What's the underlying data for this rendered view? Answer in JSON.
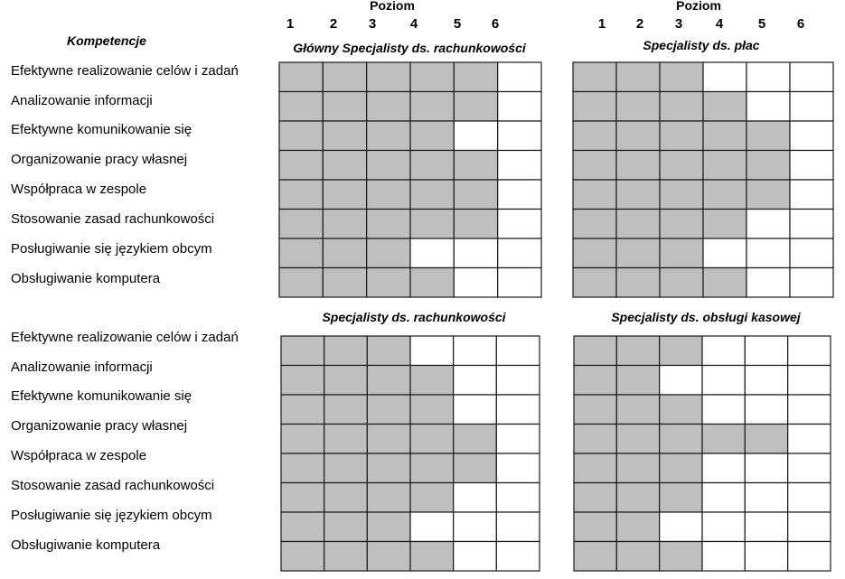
{
  "chart_data": {
    "type": "heatmap",
    "header": {
      "title": "Poziom",
      "levels": [
        "1",
        "2",
        "3",
        "4",
        "5",
        "6"
      ]
    },
    "competencies_label": "Kompetencje",
    "competencies": [
      "Efektywne realizowanie celów i zadań",
      "Analizowanie informacji",
      "Efektywne komunikowanie  się",
      "Organizowanie pracy własnej",
      "Współpraca w zespole",
      "Stosowanie zasad rachunkowości",
      "Posługiwanie się językiem obcym",
      "Obsługiwanie komputera"
    ],
    "fill_color": "#bfbfbf",
    "empty_color": "#ffffff",
    "panels": [
      {
        "title": "Główny Specjalisty ds. rachunkowości",
        "levels_filled": [
          5,
          5,
          4,
          5,
          5,
          5,
          3,
          4
        ]
      },
      {
        "title": "Specjalisty ds. płac",
        "levels_filled": [
          3,
          4,
          5,
          5,
          5,
          4,
          3,
          4
        ]
      },
      {
        "title": "Specjalisty  ds. rachunkowości",
        "levels_filled": [
          3,
          4,
          4,
          5,
          5,
          4,
          3,
          4
        ]
      },
      {
        "title": "Specjalisty ds. obsługi kasowej",
        "levels_filled": [
          3,
          2,
          3,
          5,
          3,
          3,
          2,
          3
        ]
      }
    ]
  }
}
